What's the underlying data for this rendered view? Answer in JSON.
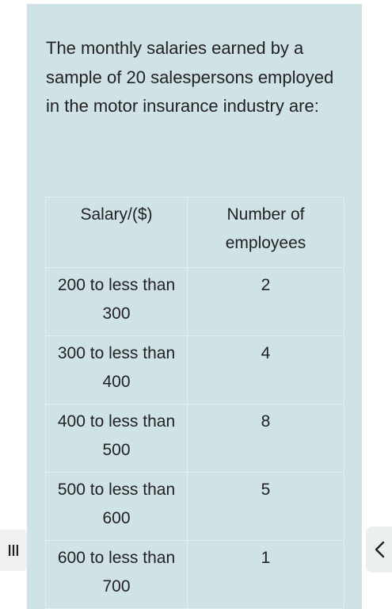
{
  "question": {
    "intro": "The monthly salaries earned by a sample of 20 salespersons employed in the motor insurance industry are:"
  },
  "table": {
    "headers": [
      "Salary/($)",
      "Number of employees"
    ],
    "rows": [
      {
        "salary": "200 to less than 300",
        "employees": "2"
      },
      {
        "salary": "300 to less than 400",
        "employees": "4"
      },
      {
        "salary": "400 to less than 500",
        "employees": "8"
      },
      {
        "salary": "500 to less than 600",
        "employees": "5"
      },
      {
        "salary": "600 to less than 700",
        "employees": "1"
      }
    ]
  },
  "controls": {
    "menu_icon": "hamburger-menu-icon",
    "back_icon": "chevron-left-icon"
  }
}
